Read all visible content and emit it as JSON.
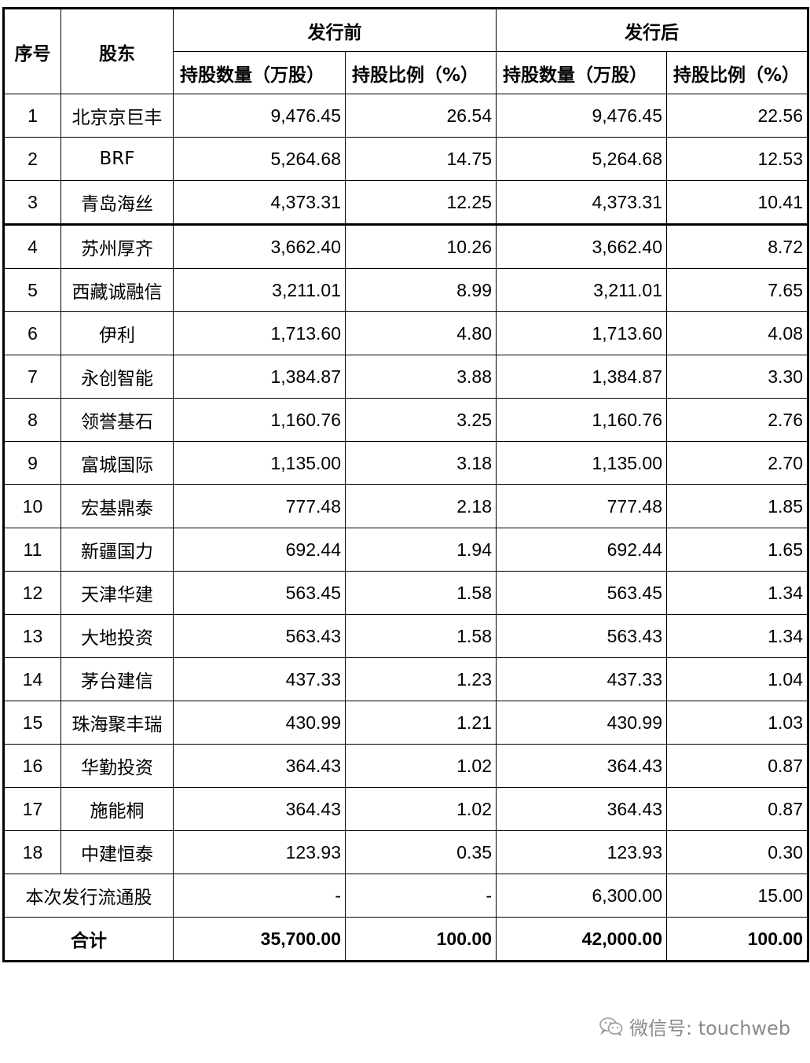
{
  "headers": {
    "no": "序号",
    "holder": "股东",
    "before": "发行前",
    "after": "发行后",
    "qty": "持股数量（万股）",
    "pct": "持股比例（%）"
  },
  "rows": [
    {
      "no": "1",
      "name": "北京京巨丰",
      "b_qty": "9,476.45",
      "b_pct": "26.54",
      "a_qty": "9,476.45",
      "a_pct": "22.56"
    },
    {
      "no": "2",
      "name": "BRF",
      "b_qty": "5,264.68",
      "b_pct": "14.75",
      "a_qty": "5,264.68",
      "a_pct": "12.53"
    },
    {
      "no": "3",
      "name": "青岛海丝",
      "b_qty": "4,373.31",
      "b_pct": "12.25",
      "a_qty": "4,373.31",
      "a_pct": "10.41"
    },
    {
      "no": "4",
      "name": "苏州厚齐",
      "b_qty": "3,662.40",
      "b_pct": "10.26",
      "a_qty": "3,662.40",
      "a_pct": "8.72"
    },
    {
      "no": "5",
      "name": "西藏诚融信",
      "b_qty": "3,211.01",
      "b_pct": "8.99",
      "a_qty": "3,211.01",
      "a_pct": "7.65"
    },
    {
      "no": "6",
      "name": "伊利",
      "b_qty": "1,713.60",
      "b_pct": "4.80",
      "a_qty": "1,713.60",
      "a_pct": "4.08"
    },
    {
      "no": "7",
      "name": "永创智能",
      "b_qty": "1,384.87",
      "b_pct": "3.88",
      "a_qty": "1,384.87",
      "a_pct": "3.30"
    },
    {
      "no": "8",
      "name": "领誉基石",
      "b_qty": "1,160.76",
      "b_pct": "3.25",
      "a_qty": "1,160.76",
      "a_pct": "2.76"
    },
    {
      "no": "9",
      "name": "富城国际",
      "b_qty": "1,135.00",
      "b_pct": "3.18",
      "a_qty": "1,135.00",
      "a_pct": "2.70"
    },
    {
      "no": "10",
      "name": "宏基鼎泰",
      "b_qty": "777.48",
      "b_pct": "2.18",
      "a_qty": "777.48",
      "a_pct": "1.85"
    },
    {
      "no": "11",
      "name": "新疆国力",
      "b_qty": "692.44",
      "b_pct": "1.94",
      "a_qty": "692.44",
      "a_pct": "1.65"
    },
    {
      "no": "12",
      "name": "天津华建",
      "b_qty": "563.45",
      "b_pct": "1.58",
      "a_qty": "563.45",
      "a_pct": "1.34"
    },
    {
      "no": "13",
      "name": "大地投资",
      "b_qty": "563.43",
      "b_pct": "1.58",
      "a_qty": "563.43",
      "a_pct": "1.34"
    },
    {
      "no": "14",
      "name": "茅台建信",
      "b_qty": "437.33",
      "b_pct": "1.23",
      "a_qty": "437.33",
      "a_pct": "1.04"
    },
    {
      "no": "15",
      "name": "珠海聚丰瑞",
      "b_qty": "430.99",
      "b_pct": "1.21",
      "a_qty": "430.99",
      "a_pct": "1.03"
    },
    {
      "no": "16",
      "name": "华勤投资",
      "b_qty": "364.43",
      "b_pct": "1.02",
      "a_qty": "364.43",
      "a_pct": "0.87"
    },
    {
      "no": "17",
      "name": "施能桐",
      "b_qty": "364.43",
      "b_pct": "1.02",
      "a_qty": "364.43",
      "a_pct": "0.87"
    },
    {
      "no": "18",
      "name": "中建恒泰",
      "b_qty": "123.93",
      "b_pct": "0.35",
      "a_qty": "123.93",
      "a_pct": "0.30"
    }
  ],
  "circulating": {
    "label": "本次发行流通股",
    "b_qty": "-",
    "b_pct": "-",
    "a_qty": "6,300.00",
    "a_pct": "15.00"
  },
  "total": {
    "label": "合计",
    "b_qty": "35,700.00",
    "b_pct": "100.00",
    "a_qty": "42,000.00",
    "a_pct": "100.00"
  },
  "watermark": {
    "text": "微信号: touchweb",
    "icon": "wechat-icon"
  }
}
